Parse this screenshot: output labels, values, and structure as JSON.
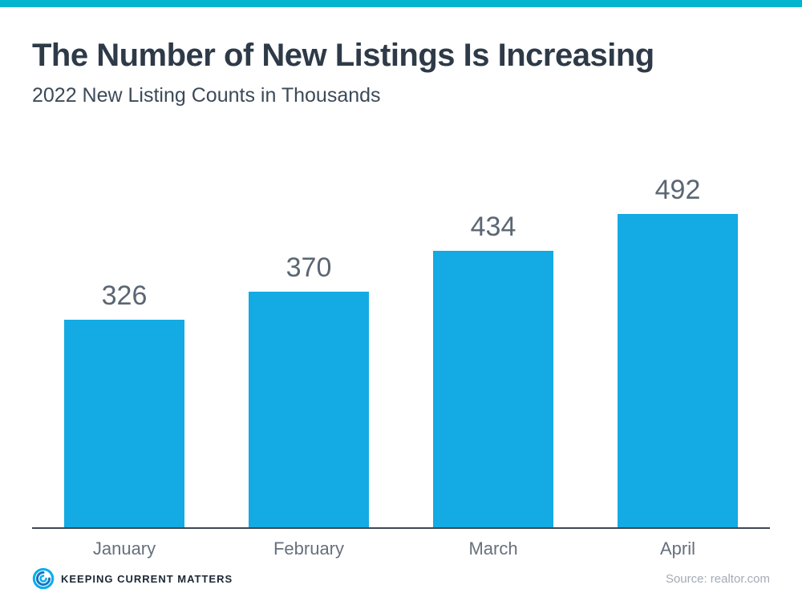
{
  "theme": {
    "accent_bar_color": "#00b5cd",
    "bar_color": "#14aae3",
    "title_color": "#2e3a48",
    "label_color": "#5b6673"
  },
  "header": {
    "title": "The Number of New Listings Is Increasing",
    "subtitle": "2022 New Listing Counts in Thousands"
  },
  "chart_data": {
    "type": "bar",
    "categories": [
      "January",
      "February",
      "March",
      "April"
    ],
    "values": [
      326,
      370,
      434,
      492
    ],
    "title": "The Number of New Listings Is Increasing",
    "subtitle": "2022 New Listing Counts in Thousands",
    "xlabel": "",
    "ylabel": "",
    "ylim": [
      0,
      520
    ],
    "grid": false,
    "legend": "none",
    "data_labels": true,
    "bar_color": "#14aae3"
  },
  "footer": {
    "brand": "Keeping Current Matters",
    "logo_icon": "kcm-swirl-icon",
    "source": "Source: realtor.com"
  }
}
